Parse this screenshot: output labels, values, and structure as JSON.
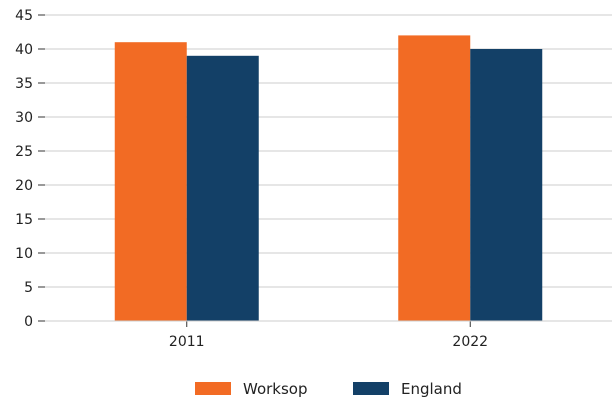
{
  "chart_data": {
    "type": "bar",
    "categories": [
      "2011",
      "2022"
    ],
    "series": [
      {
        "name": "Worksop",
        "values": [
          41,
          42
        ],
        "color": "#f26b24"
      },
      {
        "name": "England",
        "values": [
          39,
          40
        ],
        "color": "#134067"
      }
    ],
    "ylim": [
      0,
      45
    ],
    "yticks": [
      "0",
      "5",
      "10",
      "15",
      "20",
      "25",
      "30",
      "35",
      "40",
      "45"
    ],
    "grid": "horizontal",
    "legend_position": "bottom-center",
    "title": "",
    "xlabel": "",
    "ylabel": ""
  }
}
